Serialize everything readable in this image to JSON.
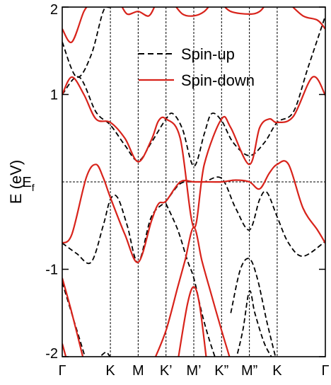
{
  "chart_data": {
    "type": "line",
    "ylabel": "E (eV)",
    "ylim": [
      -2,
      2
    ],
    "y_ticks": [
      {
        "value": 2,
        "label": "2"
      },
      {
        "value": 1,
        "label": "1"
      },
      {
        "value": -1,
        "label": "-1"
      },
      {
        "value": -2,
        "label": "-2"
      }
    ],
    "fermi_label": "E",
    "fermi_subscript": "f",
    "k_points": [
      "Γ",
      "K",
      "M",
      "K’",
      "M’",
      "K”",
      "M”",
      "K",
      "Γ"
    ],
    "k_positions": [
      0,
      1,
      1.577,
      2.155,
      2.732,
      3.309,
      3.887,
      4.464,
      5.464
    ],
    "legend": {
      "position": "top-right",
      "entries": [
        {
          "label": "Spin-up",
          "style": "dashed",
          "color": "#000000"
        },
        {
          "label": "Spin-down",
          "style": "solid",
          "color": "#d8231b"
        }
      ]
    },
    "series": [
      {
        "name": "Spin-up",
        "color": "#000000",
        "style": "dashed",
        "bands": [
          [
            [
              0,
              1.6
            ],
            [
              0.3,
              1.2
            ],
            [
              0.6,
              1.45
            ],
            [
              0.85,
              1.95
            ],
            [
              1,
              2.0
            ],
            [
              1.3,
              2.05
            ]
          ],
          [
            [
              0,
              1.0
            ],
            [
              0.35,
              1.2
            ],
            [
              0.7,
              0.8
            ],
            [
              1,
              0.65
            ],
            [
              1.3,
              0.42
            ],
            [
              1.577,
              0.24
            ],
            [
              1.85,
              0.45
            ],
            [
              2.155,
              0.72
            ],
            [
              2.3,
              0.78
            ],
            [
              2.5,
              0.6
            ],
            [
              2.732,
              0.18
            ],
            [
              2.95,
              0.55
            ],
            [
              3.1,
              0.78
            ],
            [
              3.309,
              0.7
            ],
            [
              3.55,
              0.45
            ],
            [
              3.887,
              0.3
            ],
            [
              4.2,
              0.45
            ],
            [
              4.464,
              0.68
            ],
            [
              4.8,
              0.8
            ],
            [
              5.1,
              1.3
            ],
            [
              5.464,
              1.9
            ]
          ],
          [
            [
              0,
              -0.7
            ],
            [
              0.3,
              -0.82
            ],
            [
              0.6,
              -0.92
            ],
            [
              0.85,
              -0.5
            ],
            [
              1,
              -0.2
            ],
            [
              1.15,
              -0.18
            ],
            [
              1.35,
              -0.5
            ],
            [
              1.577,
              -0.92
            ],
            [
              1.85,
              -0.4
            ],
            [
              2.155,
              -0.22
            ],
            [
              2.45,
              -0.02
            ],
            [
              2.732,
              0.0
            ],
            [
              2.95,
              0.0
            ],
            [
              3.309,
              0.04
            ],
            [
              3.6,
              -0.3
            ],
            [
              3.887,
              -0.55
            ],
            [
              4.1,
              -0.2
            ],
            [
              4.25,
              -0.12
            ],
            [
              4.464,
              -0.4
            ],
            [
              4.7,
              -0.7
            ],
            [
              5.0,
              -0.85
            ],
            [
              5.464,
              -0.68
            ]
          ],
          [
            [
              2.155,
              -0.25
            ],
            [
              2.4,
              -0.55
            ],
            [
              2.6,
              -0.9
            ],
            [
              2.732,
              -1.1
            ],
            [
              2.9,
              -1.5
            ],
            [
              3.05,
              -1.8
            ],
            [
              3.2,
              -2.05
            ]
          ],
          [
            [
              3.6,
              -2.05
            ],
            [
              3.75,
              -1.7
            ],
            [
              3.887,
              -1.25
            ],
            [
              4.0,
              -1.5
            ],
            [
              4.2,
              -1.85
            ],
            [
              4.4,
              -2.05
            ]
          ],
          [
            [
              3.5,
              -1.5
            ],
            [
              3.7,
              -1.0
            ],
            [
              3.887,
              -0.88
            ],
            [
              4.05,
              -1.1
            ],
            [
              4.25,
              -1.6
            ],
            [
              4.45,
              -2.05
            ]
          ],
          [
            [
              0,
              -1.15
            ],
            [
              0.25,
              -1.6
            ],
            [
              0.5,
              -2.05
            ]
          ],
          [
            [
              0.7,
              -2.05
            ],
            [
              0.9,
              -1.95
            ],
            [
              1.0,
              -2.0
            ],
            [
              1.2,
              -2.05
            ]
          ]
        ]
      },
      {
        "name": "Spin-down",
        "color": "#d8231b",
        "style": "solid",
        "bands": [
          [
            [
              0,
              1.0
            ],
            [
              0.2,
              1.2
            ],
            [
              0.45,
              1.0
            ],
            [
              0.7,
              0.72
            ],
            [
              1,
              0.68
            ],
            [
              1.3,
              0.5
            ],
            [
              1.577,
              0.23
            ],
            [
              1.85,
              0.48
            ],
            [
              2.0,
              0.7
            ],
            [
              2.155,
              0.72
            ],
            [
              2.45,
              0.5
            ],
            [
              2.732,
              -0.52
            ],
            [
              2.95,
              0.2
            ],
            [
              3.309,
              0.72
            ],
            [
              3.5,
              0.62
            ],
            [
              3.887,
              0.2
            ],
            [
              4.1,
              0.62
            ],
            [
              4.3,
              0.72
            ],
            [
              4.464,
              0.68
            ],
            [
              4.8,
              0.75
            ],
            [
              5.2,
              1.2
            ],
            [
              5.464,
              0.99
            ]
          ],
          [
            [
              0,
              -0.7
            ],
            [
              0.2,
              -0.6
            ],
            [
              0.5,
              0.05
            ],
            [
              0.7,
              0.2
            ],
            [
              0.85,
              0.05
            ],
            [
              1,
              -0.18
            ],
            [
              1.3,
              -0.6
            ],
            [
              1.577,
              -0.92
            ],
            [
              1.85,
              -0.45
            ],
            [
              2.0,
              -0.25
            ],
            [
              2.155,
              -0.22
            ],
            [
              2.45,
              0.0
            ],
            [
              2.732,
              0.0
            ],
            [
              2.95,
              0.0
            ],
            [
              3.309,
              0.0
            ],
            [
              3.6,
              0.02
            ],
            [
              3.887,
              0.0
            ],
            [
              4.1,
              -0.08
            ],
            [
              4.3,
              0.1
            ],
            [
              4.464,
              0.2
            ],
            [
              4.7,
              0.2
            ],
            [
              5.0,
              -0.3
            ],
            [
              5.3,
              -0.55
            ],
            [
              5.464,
              -0.7
            ]
          ],
          [
            [
              1.9,
              -2.05
            ],
            [
              2.155,
              -1.7
            ],
            [
              2.4,
              -1.2
            ],
            [
              2.55,
              -0.9
            ],
            [
              2.732,
              -0.52
            ],
            [
              2.9,
              -0.9
            ],
            [
              3.05,
              -1.2
            ],
            [
              3.309,
              -1.7
            ],
            [
              3.5,
              -2.05
            ]
          ],
          [
            [
              2.4,
              -2.05
            ],
            [
              2.6,
              -1.4
            ],
            [
              2.732,
              -1.2
            ],
            [
              2.85,
              -1.4
            ],
            [
              3.0,
              -2.05
            ]
          ],
          [
            [
              0,
              -1.1
            ],
            [
              0.2,
              -1.5
            ],
            [
              0.45,
              -2.05
            ]
          ],
          [
            [
              0,
              -1.85
            ],
            [
              0.1,
              -2.05
            ]
          ],
          [
            [
              0,
              1.75
            ],
            [
              0.2,
              1.6
            ],
            [
              0.45,
              1.95
            ],
            [
              0.6,
              2.05
            ]
          ],
          [
            [
              1.2,
              2.05
            ],
            [
              1.35,
              1.92
            ],
            [
              1.577,
              1.95
            ],
            [
              1.8,
              1.9
            ],
            [
              1.95,
              2.05
            ]
          ],
          [
            [
              2.3,
              2.05
            ],
            [
              2.5,
              1.92
            ],
            [
              2.732,
              1.9
            ],
            [
              2.95,
              1.95
            ],
            [
              3.1,
              2.05
            ]
          ],
          [
            [
              3.3,
              2.05
            ],
            [
              3.5,
              1.95
            ],
            [
              3.887,
              1.92
            ],
            [
              4.1,
              1.95
            ],
            [
              4.25,
              2.05
            ]
          ],
          [
            [
              4.7,
              2.05
            ],
            [
              5.0,
              1.9
            ],
            [
              5.3,
              1.85
            ],
            [
              5.464,
              1.75
            ]
          ]
        ]
      }
    ]
  }
}
